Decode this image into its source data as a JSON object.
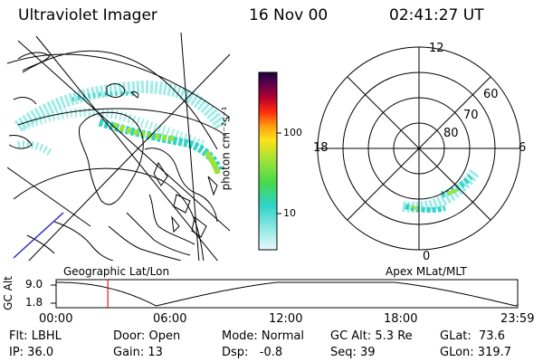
{
  "header": {
    "title": "Ultraviolet Imager",
    "date": "16 Nov 00",
    "time": "02:41:27 UT"
  },
  "colorbar": {
    "label": "photon cm⁻²s⁻¹",
    "ticks": [
      "100",
      "10"
    ],
    "scale": "log"
  },
  "polar": {
    "mlt_labels": {
      "top": "12",
      "left": "18",
      "right": "6",
      "bottom": "0"
    },
    "mlat_labels": [
      "60",
      "70",
      "80"
    ]
  },
  "panel_labels": {
    "left": "Geographic Lat/Lon",
    "right": "Apex MLat/MLT"
  },
  "altitude_plot": {
    "ylabel": "GC Alt",
    "yticks": [
      "9.0",
      "1.8"
    ],
    "xticks": [
      "00:00",
      "06:00",
      "12:00",
      "18:00",
      "23:59"
    ],
    "marker_time_hours": 2.69
  },
  "info": {
    "row1": {
      "filter": "Flt: LBHL",
      "door": "Door: Open",
      "mode": "Mode: Normal",
      "gc_alt": "GC Alt: 5.3 Re",
      "glat": "GLat:  73.6"
    },
    "row2": {
      "ip": "IP: 36.0",
      "gain": "Gain: 13",
      "dsp": "Dsp:   -0.8",
      "seq": "Seq: 39",
      "glon": "GLon: 319.7"
    }
  },
  "colors": {
    "aurora_dim": "#8fe8e4",
    "aurora_mid": "#2fd3c8",
    "aurora_bright": "#9be33a",
    "aurora_peak": "#5ccc2a",
    "marker": "#cc2222",
    "coast": "#000000"
  }
}
